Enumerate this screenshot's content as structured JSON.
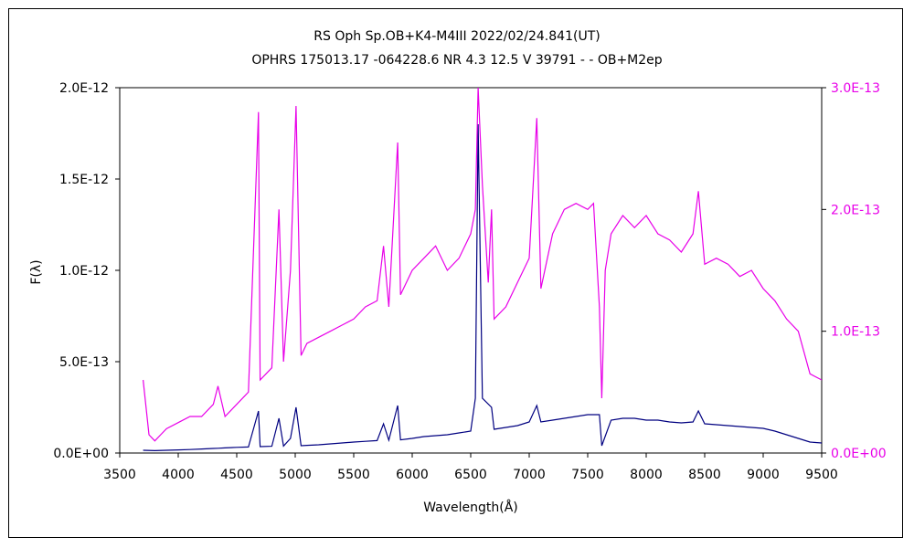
{
  "chart_data": {
    "type": "line",
    "title": "RS Oph    Sp.OB+K4-M4III    2022/02/24.841(UT)",
    "subtitle": "OPHRS 175013.17 -064228.6 NR 4.3 12.5 V 39791 - - OB+M2ep",
    "xlabel": "Wavelength(Å)",
    "ylabel": "F(λ)",
    "xlim": [
      3500,
      9500
    ],
    "ylim_left": [
      0,
      2e-12
    ],
    "ylim_right": [
      0,
      3e-13
    ],
    "grid": false,
    "x_ticks": [
      "3500",
      "4000",
      "4500",
      "5000",
      "5500",
      "6000",
      "6500",
      "7000",
      "7500",
      "8000",
      "8500",
      "9000",
      "9500"
    ],
    "y_ticks_left": [
      "0.0E+00",
      "5.0E-13",
      "1.0E-12",
      "1.5E-12",
      "2.0E-12"
    ],
    "y_ticks_right": [
      "0.0E+00",
      "1.0E-13",
      "2.0E-13",
      "3.0E-13"
    ],
    "series": [
      {
        "axis": "left",
        "color": "#000080",
        "x": [
          3700,
          3800,
          3900,
          4000,
          4100,
          4200,
          4300,
          4340,
          4400,
          4500,
          4600,
          4686,
          4700,
          4800,
          4861,
          4900,
          4959,
          5007,
          5050,
          5100,
          5200,
          5300,
          5400,
          5500,
          5600,
          5700,
          5755,
          5800,
          5876,
          5900,
          6000,
          6100,
          6200,
          6300,
          6400,
          6500,
          6540,
          6563,
          6600,
          6678,
          6700,
          6800,
          6900,
          7000,
          7065,
          7100,
          7200,
          7300,
          7400,
          7500,
          7600,
          7620,
          7700,
          7800,
          7900,
          8000,
          8100,
          8200,
          8300,
          8400,
          8446,
          8500,
          8600,
          8700,
          8800,
          8900,
          9000,
          9100,
          9200,
          9300,
          9400,
          9500
        ],
        "values": [
          1.5e-14,
          1.3e-14,
          1.5e-14,
          1.7e-14,
          1.9e-14,
          2.2e-14,
          2.5e-14,
          2.6e-14,
          2.8e-14,
          3.1e-14,
          3.3e-14,
          2.3e-13,
          3.5e-14,
          3.7e-14,
          1.9e-13,
          3.8e-14,
          8e-14,
          2.5e-13,
          4e-14,
          4.2e-14,
          4.5e-14,
          5e-14,
          5.5e-14,
          6e-14,
          6.4e-14,
          6.8e-14,
          1.6e-13,
          7e-14,
          2.6e-13,
          7.2e-14,
          8e-14,
          9e-14,
          9.5e-14,
          1e-13,
          1.1e-13,
          1.2e-13,
          3e-13,
          1.8e-12,
          3e-13,
          2.5e-13,
          1.3e-13,
          1.4e-13,
          1.5e-13,
          1.7e-13,
          2.6e-13,
          1.7e-13,
          1.8e-13,
          1.9e-13,
          2e-13,
          2.1e-13,
          2.1e-13,
          4e-14,
          1.8e-13,
          1.9e-13,
          1.9e-13,
          1.8e-13,
          1.8e-13,
          1.7e-13,
          1.65e-13,
          1.7e-13,
          2.3e-13,
          1.6e-13,
          1.55e-13,
          1.5e-13,
          1.45e-13,
          1.4e-13,
          1.35e-13,
          1.2e-13,
          1e-13,
          8e-14,
          6e-14,
          5.5e-14
        ]
      },
      {
        "axis": "right",
        "color": "#e800e8",
        "x": [
          3700,
          3750,
          3800,
          3850,
          3900,
          4000,
          4101,
          4200,
          4300,
          4340,
          4400,
          4500,
          4600,
          4686,
          4700,
          4800,
          4861,
          4900,
          4959,
          5007,
          5050,
          5100,
          5200,
          5300,
          5400,
          5500,
          5600,
          5700,
          5755,
          5800,
          5876,
          5900,
          6000,
          6100,
          6200,
          6300,
          6400,
          6500,
          6540,
          6563,
          6600,
          6650,
          6678,
          6700,
          6800,
          6900,
          7000,
          7065,
          7100,
          7200,
          7300,
          7400,
          7500,
          7550,
          7600,
          7620,
          7650,
          7700,
          7800,
          7900,
          8000,
          8100,
          8200,
          8300,
          8400,
          8446,
          8500,
          8600,
          8700,
          8800,
          8900,
          9000,
          9100,
          9200,
          9300,
          9400,
          9500
        ],
        "values": [
          6e-14,
          1.5e-14,
          1e-14,
          1.5e-14,
          2e-14,
          2.5e-14,
          3e-14,
          3e-14,
          4e-14,
          5.5e-14,
          3e-14,
          4e-14,
          5e-14,
          2.8e-13,
          6e-14,
          7e-14,
          2e-13,
          7.5e-14,
          1.5e-13,
          2.85e-13,
          8e-14,
          9e-14,
          9.5e-14,
          1e-13,
          1.05e-13,
          1.1e-13,
          1.2e-13,
          1.25e-13,
          1.7e-13,
          1.2e-13,
          2.55e-13,
          1.3e-13,
          1.5e-13,
          1.6e-13,
          1.7e-13,
          1.5e-13,
          1.6e-13,
          1.8e-13,
          2e-13,
          3e-13,
          2.2e-13,
          1.4e-13,
          2e-13,
          1.1e-13,
          1.2e-13,
          1.4e-13,
          1.6e-13,
          2.75e-13,
          1.35e-13,
          1.8e-13,
          2e-13,
          2.05e-13,
          2e-13,
          2.05e-13,
          1.2e-13,
          4.5e-14,
          1.5e-13,
          1.8e-13,
          1.95e-13,
          1.85e-13,
          1.95e-13,
          1.8e-13,
          1.75e-13,
          1.65e-13,
          1.8e-13,
          2.15e-13,
          1.55e-13,
          1.6e-13,
          1.55e-13,
          1.45e-13,
          1.5e-13,
          1.35e-13,
          1.25e-13,
          1.1e-13,
          1e-13,
          6.5e-14,
          6e-14
        ]
      }
    ]
  }
}
